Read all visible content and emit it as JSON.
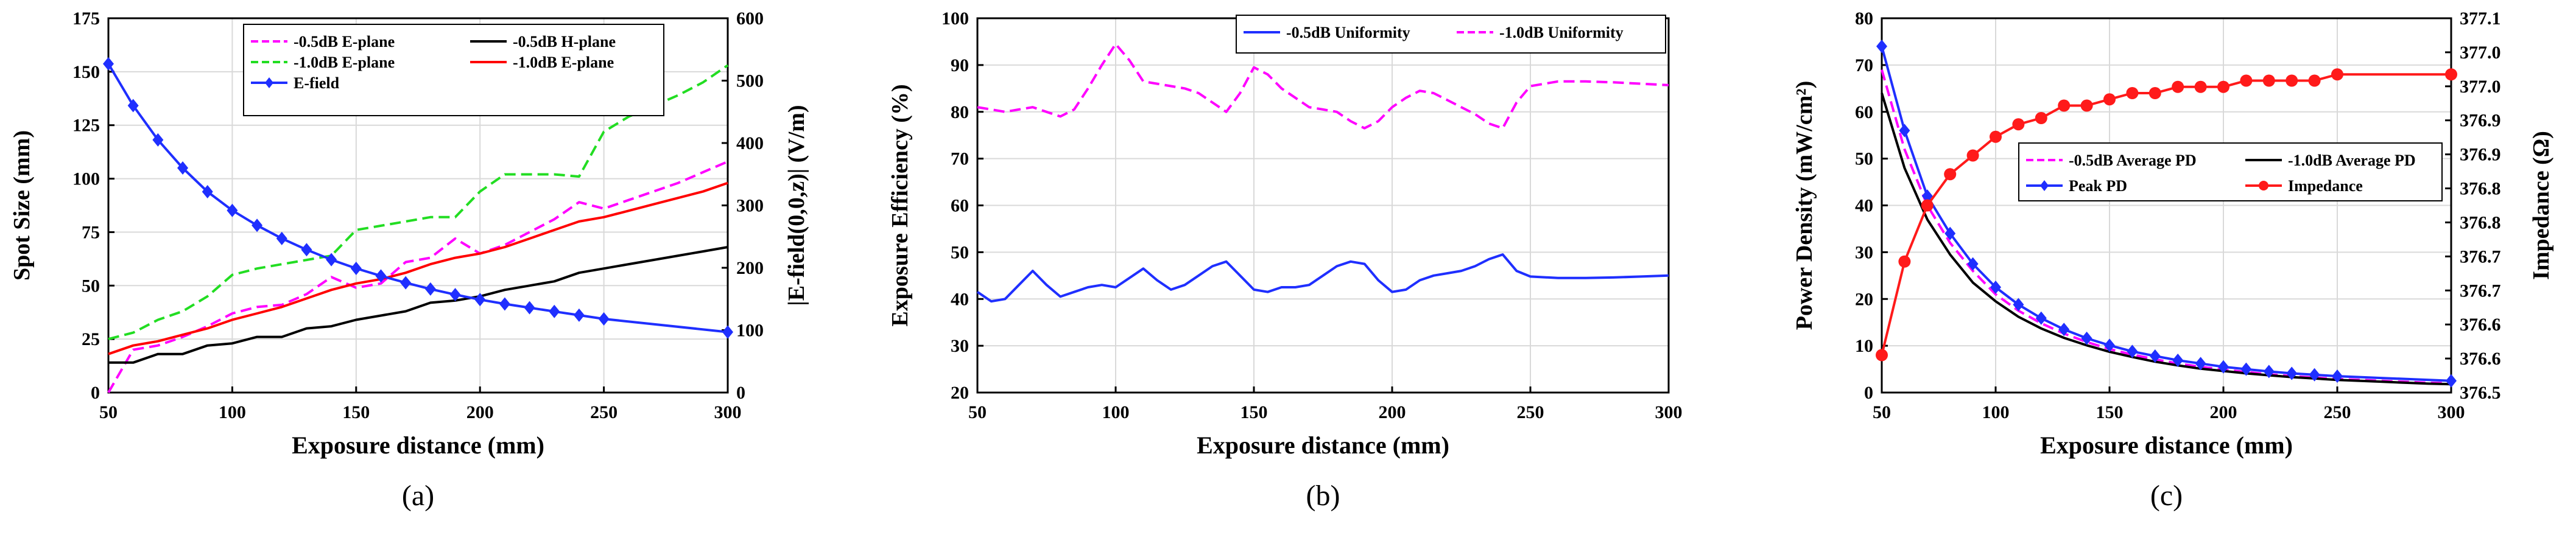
{
  "chart_data": [
    {
      "type": "line",
      "panel_label": "(a)",
      "xlabel": "Exposure distance (mm)",
      "ylabel": "Spot  Size (mm)",
      "ylabel_right": "|E-field(0,0,z)| (V/m)",
      "xlim": [
        50,
        300
      ],
      "ylim": [
        0,
        175
      ],
      "ylim_right": [
        0,
        600
      ],
      "xticks": [
        50,
        100,
        150,
        200,
        250,
        300
      ],
      "yticks": [
        0,
        25,
        50,
        75,
        100,
        125,
        150,
        175
      ],
      "yticks_right": [
        0,
        100,
        200,
        300,
        400,
        500,
        600
      ],
      "series": [
        {
          "name": "-0.5dB E-plane",
          "color": "#ff00ff",
          "dash": "dash",
          "axis": "left",
          "x": [
            50,
            60,
            70,
            80,
            90,
            100,
            110,
            120,
            130,
            140,
            150,
            160,
            170,
            180,
            190,
            200,
            210,
            220,
            230,
            240,
            250,
            260,
            270,
            280,
            290,
            300
          ],
          "y": [
            0,
            20,
            22,
            26,
            31,
            37,
            40,
            41,
            46,
            54,
            49,
            51,
            61,
            63,
            72,
            65,
            69,
            75,
            81,
            89,
            86,
            90,
            94,
            98,
            103,
            108
          ]
        },
        {
          "name": "-1.0dB E-plane",
          "color": "#22dd22",
          "dash": "dash",
          "axis": "left",
          "x": [
            50,
            60,
            70,
            80,
            90,
            100,
            110,
            120,
            130,
            140,
            150,
            160,
            170,
            180,
            190,
            200,
            210,
            220,
            230,
            240,
            250,
            260,
            270,
            280,
            290,
            300
          ],
          "y": [
            25,
            28,
            34,
            38,
            45,
            55,
            58,
            60,
            62,
            64,
            76,
            78,
            80,
            82,
            82,
            94,
            102,
            102,
            102,
            101,
            122,
            129,
            134,
            139,
            145,
            153
          ]
        },
        {
          "name": "-0.5dB H-plane",
          "color": "#000000",
          "dash": "solid",
          "axis": "left",
          "x": [
            50,
            60,
            70,
            80,
            90,
            100,
            110,
            120,
            130,
            140,
            150,
            160,
            170,
            180,
            190,
            200,
            210,
            220,
            230,
            240,
            250,
            260,
            270,
            280,
            290,
            300
          ],
          "y": [
            14,
            14,
            18,
            18,
            22,
            23,
            26,
            26,
            30,
            31,
            34,
            36,
            38,
            42,
            43,
            45,
            48,
            50,
            52,
            56,
            58,
            60,
            62,
            64,
            66,
            68
          ]
        },
        {
          "name": "-1.0dB E-plane",
          "color": "#ff0000",
          "dash": "solid",
          "axis": "left",
          "x": [
            50,
            60,
            70,
            80,
            90,
            100,
            110,
            120,
            130,
            140,
            150,
            160,
            170,
            180,
            190,
            200,
            210,
            220,
            230,
            240,
            250,
            260,
            270,
            280,
            290,
            300
          ],
          "y": [
            18,
            22,
            24,
            27,
            30,
            34,
            37,
            40,
            44,
            48,
            51,
            53,
            56,
            60,
            63,
            65,
            68,
            72,
            76,
            80,
            82,
            85,
            88,
            91,
            94,
            98
          ]
        },
        {
          "name": "E-field",
          "color": "#1f2fff",
          "dash": "solid",
          "marker": "diamond",
          "axis": "right",
          "x": [
            50,
            60,
            70,
            80,
            90,
            100,
            110,
            120,
            130,
            140,
            150,
            160,
            170,
            180,
            190,
            200,
            210,
            220,
            230,
            240,
            250,
            300
          ],
          "y": [
            527,
            460,
            405,
            360,
            322,
            292,
            268,
            247,
            229,
            213,
            199,
            187,
            176,
            166,
            157,
            149,
            142,
            136,
            130,
            124,
            118,
            97
          ]
        }
      ],
      "legend": [
        "-0.5dB E-plane",
        "-0.5dB H-plane",
        "-1.0dB E-plane",
        "-1.0dB E-plane",
        "E-field"
      ]
    },
    {
      "type": "line",
      "panel_label": "(b)",
      "xlabel": "Exposure distance (mm)",
      "ylabel": "Exposure Efficiency (%)",
      "xlim": [
        50,
        300
      ],
      "ylim": [
        20,
        100
      ],
      "xticks": [
        50,
        100,
        150,
        200,
        250,
        300
      ],
      "yticks": [
        20,
        30,
        40,
        50,
        60,
        70,
        80,
        90,
        100
      ],
      "series": [
        {
          "name": "-0.5dB Uniformity",
          "color": "#1f2fff",
          "dash": "solid",
          "x": [
            50,
            55,
            60,
            65,
            70,
            75,
            80,
            85,
            90,
            95,
            100,
            105,
            110,
            115,
            120,
            125,
            130,
            135,
            140,
            145,
            150,
            155,
            160,
            165,
            170,
            175,
            180,
            185,
            190,
            195,
            200,
            205,
            210,
            215,
            220,
            225,
            230,
            235,
            240,
            245,
            250,
            260,
            270,
            280,
            290,
            300
          ],
          "y": [
            41.5,
            39.5,
            40,
            43,
            46,
            43,
            40.5,
            41.5,
            42.5,
            43,
            42.5,
            44.5,
            46.5,
            44,
            42,
            43,
            45,
            47,
            48,
            45,
            42,
            41.5,
            42.5,
            42.5,
            43,
            45,
            47,
            48,
            47.5,
            44,
            41.5,
            42,
            44,
            45,
            45.5,
            46,
            47,
            48.5,
            49.5,
            46,
            44.8,
            44.5,
            44.5,
            44.6,
            44.8,
            45
          ]
        },
        {
          "name": "-1.0dB Uniformity",
          "color": "#ff00ff",
          "dash": "dash",
          "x": [
            50,
            55,
            60,
            65,
            70,
            75,
            80,
            85,
            90,
            95,
            100,
            105,
            110,
            115,
            120,
            125,
            130,
            135,
            140,
            145,
            150,
            155,
            160,
            165,
            170,
            175,
            180,
            185,
            190,
            195,
            200,
            205,
            210,
            215,
            220,
            225,
            230,
            235,
            240,
            245,
            250,
            260,
            270,
            280,
            290,
            300
          ],
          "y": [
            81,
            80.5,
            80,
            80.5,
            81,
            80,
            79,
            80.5,
            85,
            90,
            94.5,
            91,
            86.5,
            86,
            85.5,
            85,
            84,
            82,
            80,
            84,
            89.5,
            88,
            85,
            83,
            81,
            80.5,
            80,
            78,
            76.5,
            78,
            81,
            83,
            84.5,
            84,
            82.5,
            81,
            79.5,
            77.5,
            76.5,
            82,
            85.5,
            86.5,
            86.5,
            86.3,
            86,
            85.7
          ]
        }
      ],
      "legend": [
        "-0.5dB Uniformity",
        "-1.0dB Uniformity"
      ]
    },
    {
      "type": "line",
      "panel_label": "(c)",
      "xlabel": "Exposure distance (mm)",
      "ylabel": "Power Density (mW/cm²)",
      "ylabel_right": "Impedance (Ω)",
      "xlim": [
        50,
        300
      ],
      "ylim": [
        0,
        80
      ],
      "ylim_right": [
        376.5,
        377.1
      ],
      "xticks": [
        50,
        100,
        150,
        200,
        250,
        300
      ],
      "yticks": [
        0,
        10,
        20,
        30,
        40,
        50,
        60,
        70,
        80
      ],
      "yticks_right": [
        "376.5",
        "376.6",
        "376.6",
        "376.7",
        "376.7",
        "376.8",
        "376.8",
        "376.9",
        "376.9",
        "377.0",
        "377.0",
        "377.1"
      ],
      "series": [
        {
          "name": "-0.5dB Average PD",
          "color": "#ff00ff",
          "dash": "dash",
          "axis": "left",
          "x": [
            50,
            60,
            70,
            80,
            90,
            100,
            110,
            120,
            130,
            140,
            150,
            160,
            170,
            180,
            190,
            200,
            210,
            220,
            230,
            240,
            250,
            260,
            270,
            280,
            290,
            300
          ],
          "y": [
            69,
            52,
            40,
            32,
            26,
            21,
            17.5,
            14.8,
            12.6,
            10.8,
            9.3,
            8.1,
            7.1,
            6.2,
            5.5,
            4.9,
            4.4,
            3.9,
            3.5,
            3.2,
            2.9,
            2.7,
            2.5,
            2.3,
            2.1,
            2.0
          ]
        },
        {
          "name": "-1.0dB Average PD",
          "color": "#000000",
          "dash": "solid",
          "axis": "left",
          "x": [
            50,
            60,
            70,
            80,
            90,
            100,
            110,
            120,
            130,
            140,
            150,
            160,
            170,
            180,
            190,
            200,
            210,
            220,
            230,
            240,
            250,
            260,
            270,
            280,
            290,
            300
          ],
          "y": [
            64,
            48,
            37,
            29.5,
            23.5,
            19.5,
            16.2,
            13.7,
            11.7,
            10.1,
            8.7,
            7.6,
            6.6,
            5.8,
            5.1,
            4.6,
            4.1,
            3.7,
            3.3,
            3.0,
            2.7,
            2.5,
            2.3,
            2.1,
            1.9,
            1.8
          ]
        },
        {
          "name": "Peak PD",
          "color": "#1f2fff",
          "dash": "solid",
          "marker": "diamond",
          "axis": "left",
          "x": [
            50,
            60,
            70,
            80,
            90,
            100,
            110,
            120,
            130,
            140,
            150,
            160,
            170,
            180,
            190,
            200,
            210,
            220,
            230,
            240,
            250,
            300
          ],
          "y": [
            74,
            56,
            42,
            34,
            27.5,
            22.5,
            18.8,
            15.9,
            13.5,
            11.6,
            10.1,
            8.8,
            7.8,
            6.9,
            6.2,
            5.5,
            5.0,
            4.5,
            4.1,
            3.8,
            3.5,
            2.5
          ]
        },
        {
          "name": "Impedance",
          "color": "#ff1a1a",
          "dash": "solid",
          "marker": "circle",
          "axis": "right",
          "x": [
            50,
            60,
            70,
            80,
            90,
            100,
            110,
            120,
            130,
            140,
            150,
            160,
            170,
            180,
            190,
            200,
            210,
            220,
            230,
            240,
            250,
            300
          ],
          "y": [
            376.56,
            376.71,
            376.8,
            376.85,
            376.88,
            376.91,
            376.93,
            376.94,
            376.96,
            376.96,
            376.97,
            376.98,
            376.98,
            376.99,
            376.99,
            376.99,
            377.0,
            377.0,
            377.0,
            377.0,
            377.01,
            377.01
          ]
        }
      ],
      "legend": [
        "-0.5dB Average PD",
        "-1.0dB Average PD",
        "Peak PD",
        "Impedance"
      ]
    }
  ]
}
